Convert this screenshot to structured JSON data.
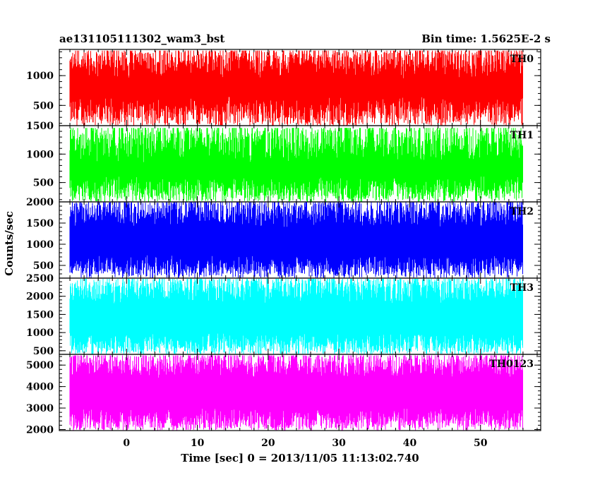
{
  "header": {
    "left_title": "ae131105111302_wam3_bst",
    "right_title": "Bin time: 1.5625E-2 s"
  },
  "chart_data": [
    {
      "type": "line",
      "name": "TH0",
      "color": "#ff0000",
      "ylim": [
        160,
        1440
      ],
      "yticks": [
        500,
        1000
      ],
      "noise": {
        "low_min": 150,
        "low_max": 650,
        "high_min": 950,
        "high_max": 1420
      },
      "x_range": [
        -8,
        56
      ]
    },
    {
      "type": "line",
      "name": "TH1",
      "color": "#00ff00",
      "ylim": [
        160,
        1500
      ],
      "yticks": [
        500,
        1000,
        1500
      ],
      "noise": {
        "low_min": 160,
        "low_max": 620,
        "high_min": 850,
        "high_max": 1460
      },
      "x_range": [
        -8,
        56
      ]
    },
    {
      "type": "line",
      "name": "TH2",
      "color": "#0000ff",
      "ylim": [
        200,
        2000
      ],
      "yticks": [
        500,
        1000,
        1500,
        2000
      ],
      "noise": {
        "low_min": 200,
        "low_max": 750,
        "high_min": 1400,
        "high_max": 1990
      },
      "x_range": [
        -8,
        56
      ]
    },
    {
      "type": "line",
      "name": "TH3",
      "color": "#00ffff",
      "ylim": [
        400,
        2500
      ],
      "yticks": [
        500,
        1000,
        1500,
        2000,
        2500
      ],
      "noise": {
        "low_min": 400,
        "low_max": 1000,
        "high_min": 1800,
        "high_max": 2480
      },
      "x_range": [
        -8,
        56
      ]
    },
    {
      "type": "line",
      "name": "TH0123",
      "color": "#ff00ff",
      "ylim": [
        1950,
        5500
      ],
      "yticks": [
        2000,
        3000,
        4000,
        5000
      ],
      "noise": {
        "low_min": 1950,
        "low_max": 3000,
        "high_min": 4400,
        "high_max": 5450
      },
      "x_range": [
        -8,
        56
      ]
    }
  ],
  "x_axis": {
    "ticks": [
      0,
      10,
      20,
      30,
      40,
      50
    ],
    "xlim": [
      -9.5,
      58.5
    ],
    "label": "Time [sec] 0 = 2013/11/05 11:13:02.740"
  },
  "y_axis": {
    "label": "Counts/sec"
  }
}
